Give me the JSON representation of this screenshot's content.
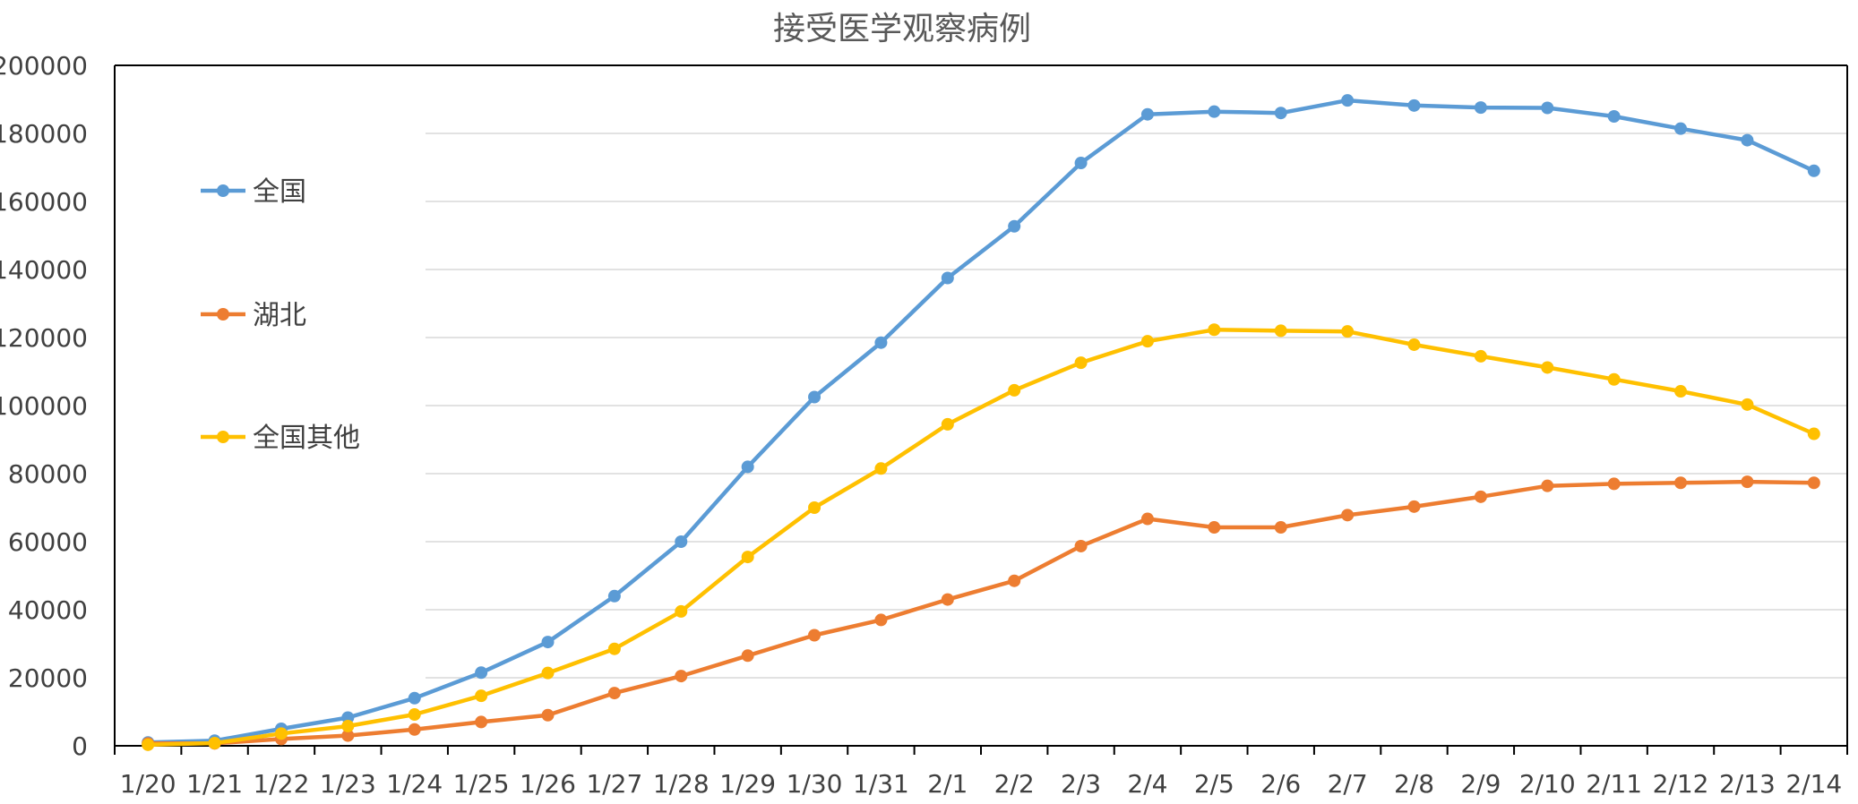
{
  "chart_data": {
    "type": "line",
    "title": "接受医学观察病例",
    "xlabel": "",
    "ylabel": "",
    "ylim": [
      0,
      200000
    ],
    "y_ticks": [
      0,
      20000,
      40000,
      60000,
      80000,
      100000,
      120000,
      140000,
      160000,
      180000,
      200000
    ],
    "y_tick_labels": [
      "0",
      "20000",
      "40000",
      "60000",
      "80000",
      "100000",
      "120000",
      "140000",
      "160000",
      "180000",
      "200000"
    ],
    "grid": true,
    "legend_position": "left",
    "categories": [
      "1/20",
      "1/21",
      "1/22",
      "1/23",
      "1/24",
      "1/25",
      "1/26",
      "1/27",
      "1/28",
      "1/29",
      "1/30",
      "1/31",
      "2/1",
      "2/2",
      "2/3",
      "2/4",
      "2/5",
      "2/6",
      "2/7",
      "2/8",
      "2/9",
      "2/10",
      "2/11",
      "2/12",
      "2/13",
      "2/14"
    ],
    "series": [
      {
        "name": "全国",
        "color": "#5B9BD5",
        "values": [
          1000,
          1500,
          5000,
          8300,
          14000,
          21500,
          30500,
          44000,
          60000,
          82000,
          102500,
          118500,
          137500,
          152700,
          171300,
          185600,
          186400,
          186000,
          189700,
          188200,
          187600,
          187500,
          185000,
          181400,
          178000,
          169000
        ]
      },
      {
        "name": "湖北",
        "color": "#ED7D31",
        "values": [
          700,
          700,
          2000,
          3000,
          4800,
          7000,
          9000,
          15500,
          20500,
          26500,
          32500,
          37000,
          43000,
          48500,
          58700,
          66700,
          64200,
          64200,
          67800,
          70300,
          73200,
          76400,
          77000,
          77300,
          77600,
          77300
        ]
      },
      {
        "name": "全国其他",
        "color": "#FFC000",
        "values": [
          300,
          800,
          3600,
          5800,
          9200,
          14700,
          21400,
          28500,
          39500,
          55500,
          70000,
          81500,
          94500,
          104500,
          112600,
          118900,
          122300,
          122000,
          121800,
          117900,
          114500,
          111200,
          107700,
          104200,
          100300,
          91700
        ]
      }
    ]
  }
}
